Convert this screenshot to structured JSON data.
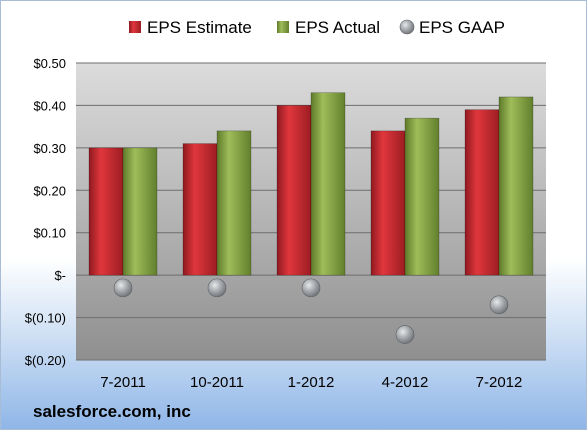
{
  "chart_data": {
    "type": "bar",
    "categories": [
      "7-2011",
      "10-2011",
      "1-2012",
      "4-2012",
      "7-2012"
    ],
    "series": [
      {
        "name": "EPS Estimate",
        "kind": "bar",
        "color": "#c0262d",
        "values": [
          0.3,
          0.31,
          0.4,
          0.34,
          0.39
        ]
      },
      {
        "name": "EPS Actual",
        "kind": "bar",
        "color": "#7c9a3c",
        "values": [
          0.3,
          0.34,
          0.43,
          0.37,
          0.42
        ]
      },
      {
        "name": "EPS GAAP",
        "kind": "marker",
        "color": "#a9acaf",
        "values": [
          -0.03,
          -0.03,
          -0.03,
          -0.14,
          -0.07
        ]
      }
    ],
    "y_ticks": [
      {
        "value": 0.5,
        "label": "$0.50"
      },
      {
        "value": 0.4,
        "label": "$0.40"
      },
      {
        "value": 0.3,
        "label": "$0.30"
      },
      {
        "value": 0.2,
        "label": "$0.20"
      },
      {
        "value": 0.1,
        "label": "$0.10"
      },
      {
        "value": 0.0,
        "label": "$-"
      },
      {
        "value": -0.1,
        "label": "$(0.10)"
      },
      {
        "value": -0.2,
        "label": "$(0.20)"
      }
    ],
    "ylim": [
      -0.2,
      0.5
    ],
    "grid": true,
    "legend_position": "top"
  },
  "footer": {
    "source": "salesforce.com, inc"
  }
}
